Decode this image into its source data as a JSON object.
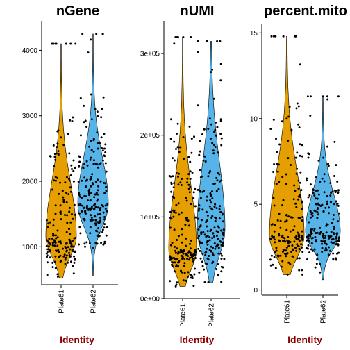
{
  "colors": {
    "Plate61": "#E69F00",
    "Plate62": "#56B4E9",
    "points": "#000000",
    "axis_title": "#8B0000"
  },
  "chart_data": [
    {
      "type": "violin",
      "title": "nGene",
      "xlabel": "Identity",
      "ylabel": "",
      "categories": [
        "Plate61",
        "Plate62"
      ],
      "ylim": [
        420,
        4450
      ],
      "yticks": [
        1000,
        2000,
        3000,
        4000
      ],
      "ytick_labels": [
        "1000",
        "2000",
        "3000",
        "4000"
      ],
      "series": [
        {
          "name": "Plate61",
          "min": 520,
          "max": 4100,
          "center": 1150,
          "spread": 420,
          "skew": 2.0,
          "points": 180
        },
        {
          "name": "Plate62",
          "min": 560,
          "max": 4250,
          "center": 1650,
          "spread": 480,
          "skew": 1.5,
          "points": 200
        }
      ]
    },
    {
      "type": "violin",
      "title": "nUMI",
      "xlabel": "Identity",
      "ylabel": "",
      "categories": [
        "Plate61",
        "Plate62"
      ],
      "ylim": [
        0,
        340000
      ],
      "yticks": [
        0,
        100000,
        200000,
        300000
      ],
      "ytick_labels": [
        "0e+00",
        "1e+05",
        "2e+05",
        "3e+05"
      ],
      "series": [
        {
          "name": "Plate61",
          "min": 15000,
          "max": 320000,
          "center": 60000,
          "spread": 35000,
          "skew": 2.2,
          "points": 180
        },
        {
          "name": "Plate62",
          "min": 20000,
          "max": 315000,
          "center": 85000,
          "spread": 45000,
          "skew": 1.8,
          "points": 200
        }
      ]
    },
    {
      "type": "violin",
      "title": "percent.mito",
      "xlabel": "Identity",
      "ylabel": "",
      "categories": [
        "Plate61",
        "Plate62"
      ],
      "ylim": [
        -0.3,
        15.5
      ],
      "yticks": [
        0,
        5,
        10,
        15
      ],
      "ytick_labels": [
        "0",
        "5",
        "10",
        "15"
      ],
      "series": [
        {
          "name": "Plate61",
          "min": 0.9,
          "max": 14.8,
          "center": 3.2,
          "spread": 1.8,
          "skew": 2.0,
          "points": 180
        },
        {
          "name": "Plate62",
          "min": 0.6,
          "max": 11.3,
          "center": 3.4,
          "spread": 1.4,
          "skew": 1.6,
          "points": 200
        }
      ]
    }
  ]
}
